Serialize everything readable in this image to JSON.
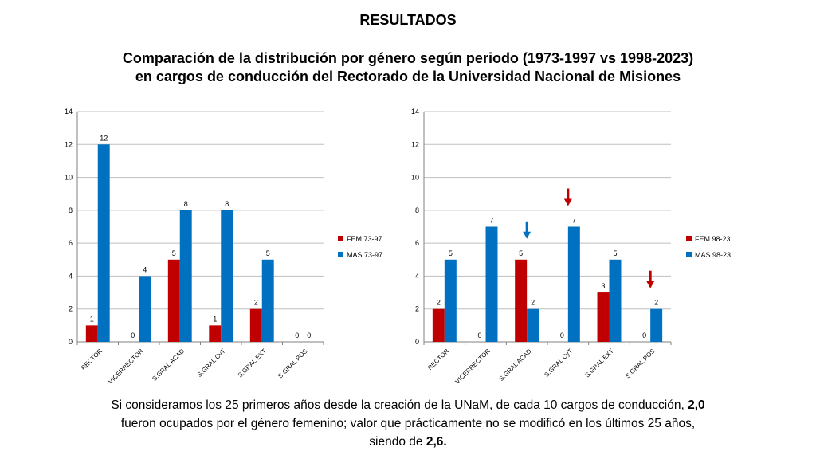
{
  "heading": "RESULTADOS",
  "title_lines": [
    "Comparación de la distribución por género según periodo (1973-1997 vs 1998-2023)",
    "en cargos de conducción del Rectorado de la Universidad Nacional de Misiones"
  ],
  "caption": {
    "line1_a": "Si consideramos los 25 primeros años desde la creación de la UNaM, de cada 10 cargos de conducción, ",
    "line1_b": "2,0",
    "line2": "fueron ocupados por el género femenino; valor que prácticamente no se modificó en los últimos 25 años,",
    "line3_a": "siendo de ",
    "line3_b": "2,6."
  },
  "colors": {
    "fem": "#C00000",
    "mas": "#0070C0",
    "grid": "#BFBFBF"
  },
  "chart_data": [
    {
      "type": "bar",
      "categories": [
        "RECTOR",
        "VICERRECTOR",
        "S.GRAL ACAD",
        "S.GRAL CyT",
        "S.GRAL EXT",
        "S.GRAL POS"
      ],
      "series": [
        {
          "name": "FEM 73-97",
          "values": [
            1,
            0,
            5,
            1,
            2,
            0
          ]
        },
        {
          "name": "MAS 73-97",
          "values": [
            12,
            4,
            8,
            8,
            5,
            0
          ]
        }
      ],
      "ylim": [
        0,
        14
      ],
      "yticks": [
        0,
        2,
        4,
        6,
        8,
        10,
        12,
        14
      ],
      "grid": true,
      "legend": "right"
    },
    {
      "type": "bar",
      "categories": [
        "RECTOR",
        "VICERRECTOR",
        "S.GRAL ACAD",
        "S.GRAL CyT",
        "S.GRAL EXT",
        "S.GRAL POS"
      ],
      "series": [
        {
          "name": "FEM 98-23",
          "values": [
            2,
            0,
            5,
            0,
            3,
            0
          ]
        },
        {
          "name": "MAS 98-23",
          "values": [
            5,
            7,
            2,
            7,
            5,
            2
          ]
        }
      ],
      "ylim": [
        0,
        14
      ],
      "yticks": [
        0,
        2,
        4,
        6,
        8,
        10,
        12,
        14
      ],
      "grid": true,
      "legend": "right",
      "annotations": [
        {
          "type": "arrow-down",
          "color": "#0070C0",
          "category": "S.GRAL ACAD"
        },
        {
          "type": "arrow-down",
          "color": "#C00000",
          "category": "S.GRAL CyT"
        },
        {
          "type": "arrow-down",
          "color": "#C00000",
          "category": "S.GRAL POS"
        }
      ]
    }
  ]
}
